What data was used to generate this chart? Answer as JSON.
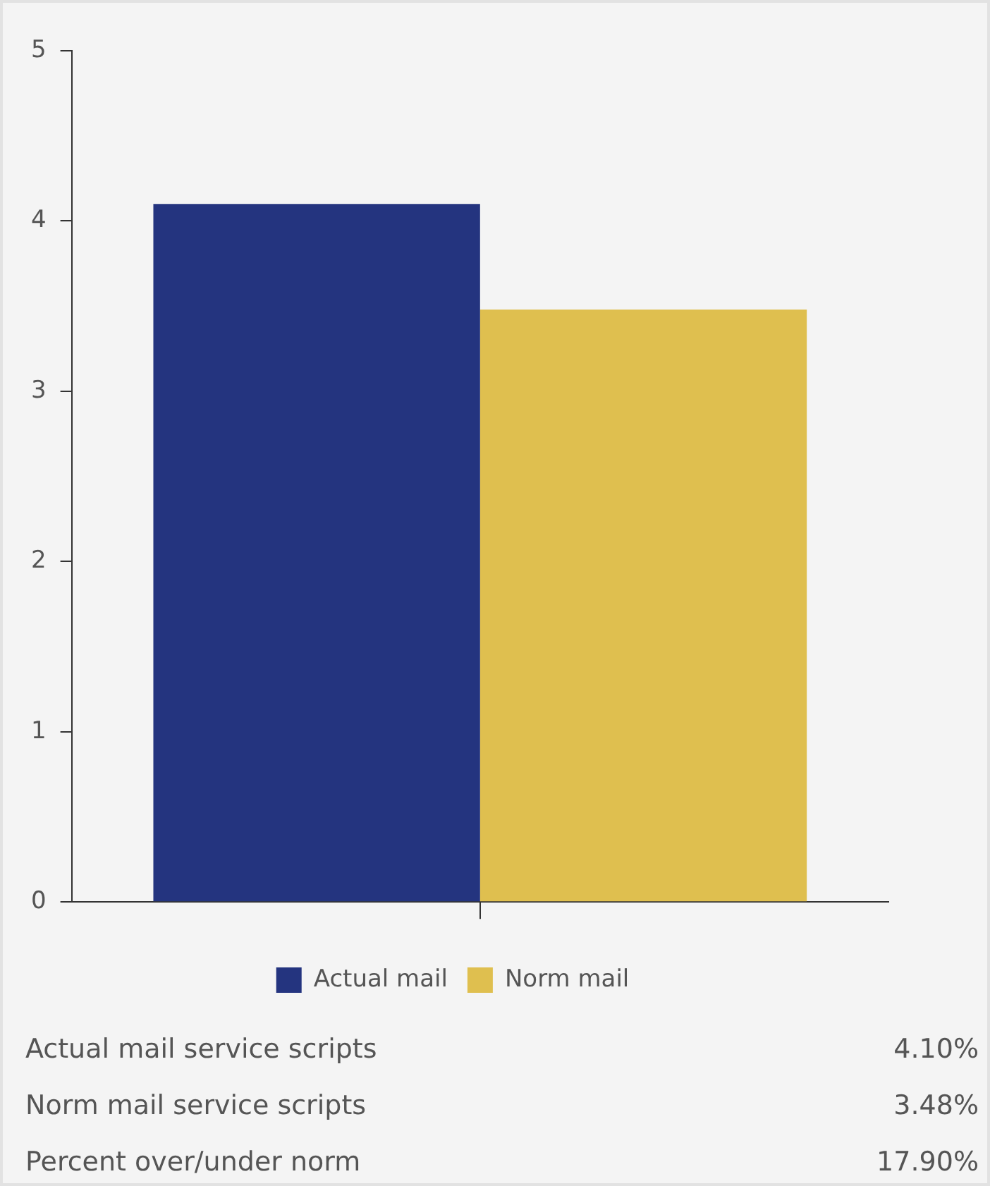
{
  "chart_data": {
    "type": "bar",
    "categories": [
      null
    ],
    "series": [
      {
        "name": "Actual mail",
        "color": "#24347f",
        "values": [
          4.1
        ]
      },
      {
        "name": "Norm mail",
        "color": "#dfbf4f",
        "values": [
          3.48
        ]
      }
    ],
    "ylim": [
      0,
      5
    ],
    "yticks": [
      0,
      1,
      2,
      3,
      4,
      5
    ],
    "grid": false,
    "legend": "bottom",
    "annotations": [
      "Actual mail service scripts",
      "4.10%",
      "Norm mail service scripts",
      "3.48%",
      "Percent over/under norm",
      "17.90%"
    ]
  }
}
